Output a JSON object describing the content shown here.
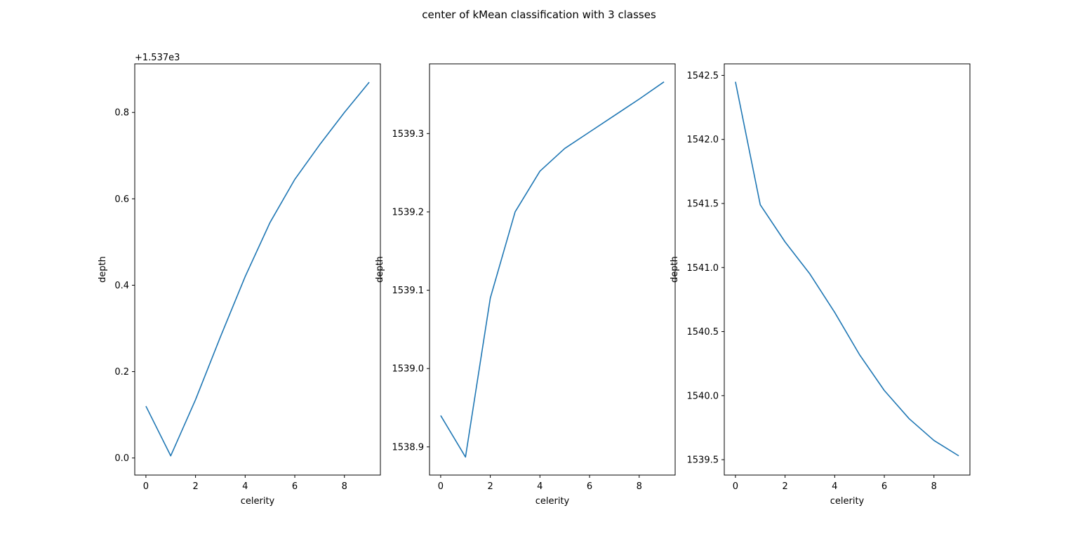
{
  "figure": {
    "title": "center of kMean classification with 3 classes"
  },
  "chart_data": [
    {
      "type": "line",
      "title": "",
      "xlabel": "celerity",
      "ylabel": "depth",
      "y_offset_label": "+1.537e3",
      "xlim": [
        -0.45,
        9.45
      ],
      "ylim": [
        -0.0395,
        0.9125
      ],
      "x_ticks": [
        0,
        2,
        4,
        6,
        8
      ],
      "x_tick_labels": [
        "0",
        "2",
        "4",
        "6",
        "8"
      ],
      "y_ticks": [
        0.0,
        0.2,
        0.4,
        0.6,
        0.8
      ],
      "y_tick_labels": [
        "0.0",
        "0.2",
        "0.4",
        "0.6",
        "0.8"
      ],
      "color": "#1f77b4",
      "x": [
        0,
        1,
        2,
        3,
        4,
        5,
        6,
        7,
        8,
        9
      ],
      "y": [
        0.12,
        0.005,
        0.135,
        0.28,
        0.42,
        0.545,
        0.645,
        0.725,
        0.8,
        0.87
      ]
    },
    {
      "type": "line",
      "title": "",
      "xlabel": "celerity",
      "ylabel": "depth",
      "y_offset_label": "",
      "xlim": [
        -0.45,
        9.45
      ],
      "ylim": [
        1538.864,
        1539.389
      ],
      "x_ticks": [
        0,
        2,
        4,
        6,
        8
      ],
      "x_tick_labels": [
        "0",
        "2",
        "4",
        "6",
        "8"
      ],
      "y_ticks": [
        1538.9,
        1539.0,
        1539.1,
        1539.2,
        1539.3
      ],
      "y_tick_labels": [
        "1538.9",
        "1539.0",
        "1539.1",
        "1539.2",
        "1539.3"
      ],
      "color": "#1f77b4",
      "x": [
        0,
        1,
        2,
        3,
        4,
        5,
        6,
        7,
        8,
        9
      ],
      "y": [
        1538.94,
        1538.887,
        1539.09,
        1539.2,
        1539.252,
        1539.281,
        1539.302,
        1539.323,
        1539.344,
        1539.366
      ]
    },
    {
      "type": "line",
      "title": "",
      "xlabel": "celerity",
      "ylabel": "depth",
      "y_offset_label": "",
      "xlim": [
        -0.45,
        9.45
      ],
      "ylim": [
        1539.38,
        1542.59
      ],
      "x_ticks": [
        0,
        2,
        4,
        6,
        8
      ],
      "x_tick_labels": [
        "0",
        "2",
        "4",
        "6",
        "8"
      ],
      "y_ticks": [
        1539.5,
        1540.0,
        1540.5,
        1541.0,
        1541.5,
        1542.0,
        1542.5
      ],
      "y_tick_labels": [
        "1539.5",
        "1540.0",
        "1540.5",
        "1541.0",
        "1541.5",
        "1542.0",
        "1542.5"
      ],
      "color": "#1f77b4",
      "x": [
        0,
        1,
        2,
        3,
        4,
        5,
        6,
        7,
        8,
        9
      ],
      "y": [
        1542.45,
        1541.49,
        1541.2,
        1540.95,
        1540.65,
        1540.32,
        1540.04,
        1539.82,
        1539.65,
        1539.53
      ]
    }
  ]
}
